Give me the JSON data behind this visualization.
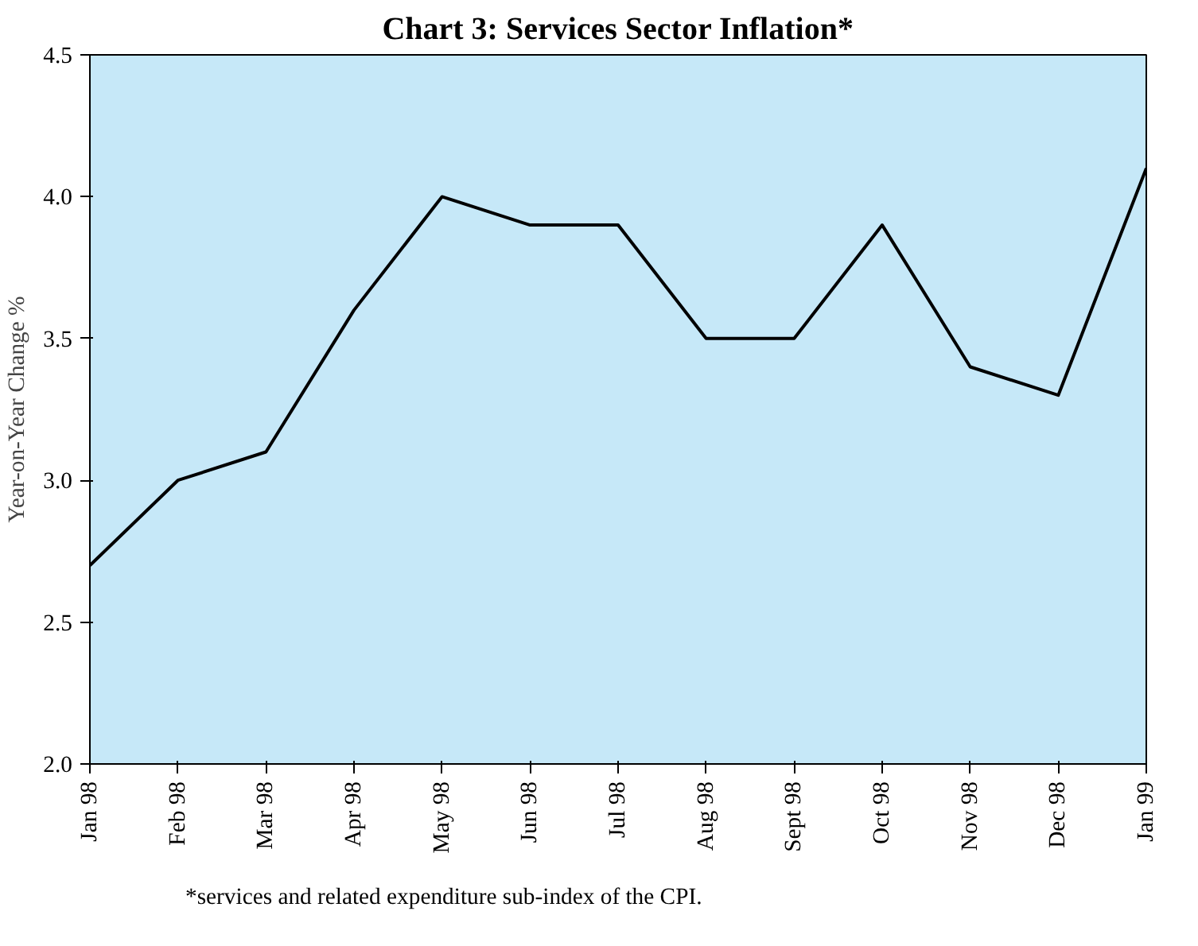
{
  "chart_data": {
    "type": "line",
    "title": "Chart 3: Services Sector Inflation*",
    "ylabel": "Year-on-Year Change %",
    "categories": [
      "Jan 98",
      "Feb 98",
      "Mar 98",
      "Apr 98",
      "May 98",
      "Jun 98",
      "Jul 98",
      "Aug 98",
      "Sept 98",
      "Oct 98",
      "Nov 98",
      "Dec 98",
      "Jan 99"
    ],
    "series": [
      {
        "color": "#000000",
        "values": [
          2.7,
          3.0,
          3.1,
          3.6,
          4.0,
          3.9,
          3.9,
          3.5,
          3.5,
          3.9,
          3.4,
          3.3,
          4.1
        ]
      }
    ],
    "ylim": [
      2.0,
      4.5
    ],
    "yticks": [
      {
        "value": 2.0,
        "label": "2.0"
      },
      {
        "value": 2.5,
        "label": "2.5"
      },
      {
        "value": 3.0,
        "label": "3.0"
      },
      {
        "value": 3.5,
        "label": "3.5"
      },
      {
        "value": 4.0,
        "label": "4.0"
      },
      {
        "value": 4.5,
        "label": "4.5"
      }
    ],
    "grid": false,
    "marker": "none",
    "line_style": "solid",
    "annotations": [
      "*services and related expenditure sub-index of the CPI."
    ]
  }
}
